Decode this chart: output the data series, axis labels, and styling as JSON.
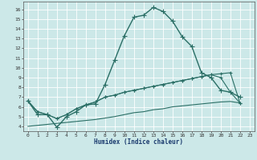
{
  "xlabel": "Humidex (Indice chaleur)",
  "bg_color": "#cce8e8",
  "line_color": "#2a6e65",
  "xlim": [
    -0.5,
    23.5
  ],
  "ylim": [
    3.5,
    16.8
  ],
  "xtick_labels": [
    "0",
    "1",
    "2",
    "3",
    "4",
    "5",
    "6",
    "7",
    "8",
    "9",
    "10",
    "11",
    "12",
    "13",
    "14",
    "15",
    "16",
    "17",
    "18",
    "19",
    "20",
    "21",
    "22",
    "23"
  ],
  "xtick_vals": [
    0,
    1,
    2,
    3,
    4,
    5,
    6,
    7,
    8,
    9,
    10,
    11,
    12,
    13,
    14,
    15,
    16,
    17,
    18,
    19,
    20,
    21,
    22,
    23
  ],
  "ytick_vals": [
    4,
    5,
    6,
    7,
    8,
    9,
    10,
    11,
    12,
    13,
    14,
    15,
    16
  ],
  "series": [
    {
      "x": [
        0,
        1,
        2,
        3,
        4,
        5,
        6,
        7,
        8,
        9,
        10,
        11,
        12,
        13,
        14,
        15,
        16,
        17,
        18,
        19,
        20,
        21,
        22
      ],
      "y": [
        6.6,
        5.2,
        5.2,
        3.9,
        5.0,
        5.5,
        6.2,
        6.3,
        8.3,
        10.8,
        13.3,
        15.2,
        15.4,
        16.2,
        15.8,
        14.8,
        13.2,
        12.2,
        9.5,
        9.0,
        7.7,
        7.5,
        7.0
      ],
      "marker": true,
      "lw": 1.0,
      "ms": 2.5
    },
    {
      "x": [
        0,
        1,
        2,
        3,
        4,
        5,
        6,
        7,
        8,
        9,
        10,
        11,
        12,
        13,
        14,
        15,
        16,
        17,
        18,
        19,
        20,
        21,
        22
      ],
      "y": [
        6.6,
        5.5,
        5.2,
        4.8,
        5.2,
        5.8,
        6.2,
        6.5,
        7.0,
        7.2,
        7.5,
        7.7,
        7.9,
        8.1,
        8.3,
        8.5,
        8.7,
        8.9,
        9.1,
        9.3,
        9.4,
        9.5,
        6.4
      ],
      "marker": true,
      "lw": 0.8,
      "ms": 2.0
    },
    {
      "x": [
        0,
        1,
        2,
        3,
        4,
        5,
        6,
        7,
        8,
        9,
        10,
        11,
        12,
        13,
        14,
        15,
        16,
        17,
        18,
        19,
        20,
        21,
        22
      ],
      "y": [
        6.6,
        5.5,
        5.2,
        4.8,
        5.2,
        5.8,
        6.2,
        6.5,
        7.0,
        7.2,
        7.5,
        7.7,
        7.9,
        8.1,
        8.3,
        8.5,
        8.7,
        8.9,
        9.1,
        9.3,
        9.0,
        7.5,
        6.4
      ],
      "marker": true,
      "lw": 0.8,
      "ms": 2.0
    },
    {
      "x": [
        0,
        1,
        2,
        3,
        4,
        5,
        6,
        7,
        8,
        9,
        10,
        11,
        12,
        13,
        14,
        15,
        16,
        17,
        18,
        19,
        20,
        21,
        22
      ],
      "y": [
        4.0,
        4.1,
        4.2,
        4.3,
        4.4,
        4.5,
        4.6,
        4.7,
        4.85,
        5.0,
        5.2,
        5.4,
        5.5,
        5.7,
        5.8,
        6.0,
        6.1,
        6.2,
        6.3,
        6.4,
        6.5,
        6.55,
        6.4
      ],
      "marker": false,
      "lw": 0.8,
      "ms": 0
    }
  ]
}
